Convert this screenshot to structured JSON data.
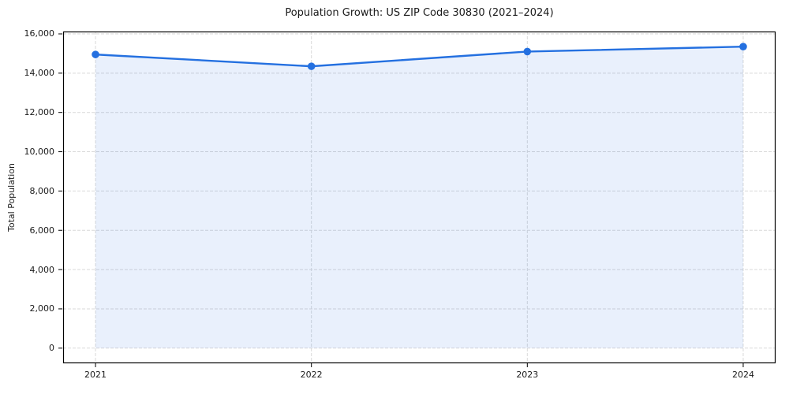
{
  "chart_data": {
    "type": "line",
    "title": "Population Growth: US ZIP Code 30830 (2021–2024)",
    "xlabel": "",
    "ylabel": "Total Population",
    "x": [
      2021,
      2022,
      2023,
      2024
    ],
    "series": [
      {
        "name": "Total Population",
        "values": [
          14950,
          14350,
          15100,
          15350
        ]
      }
    ],
    "xtick_labels": [
      "2021",
      "2022",
      "2023",
      "2024"
    ],
    "ytick_values": [
      0,
      2000,
      4000,
      6000,
      8000,
      10000,
      12000,
      14000,
      16000
    ],
    "xlim": [
      2020.85,
      2024.15
    ],
    "ylim": [
      -770,
      16120
    ],
    "grid": true,
    "grid_style": "dashed",
    "legend_position": "none",
    "area_fill_baseline": 0,
    "marker": "circle",
    "style": {
      "line_color": "#2470e0",
      "marker_color": "#2470e0",
      "fill_color": "rgba(36,112,224,0.10)",
      "grid_color": "#d9d9d9",
      "spine_color": "#000000",
      "tick_color": "#000000",
      "text_color": "#1a1a1a",
      "background": "#ffffff"
    }
  }
}
